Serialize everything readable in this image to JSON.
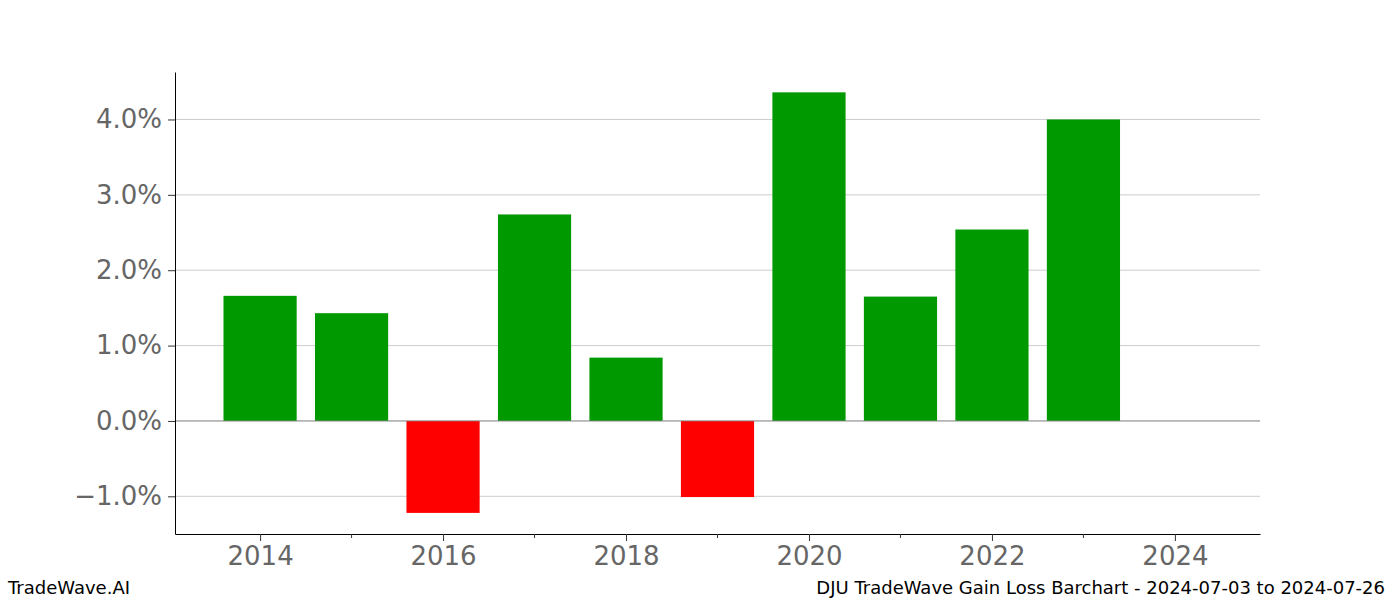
{
  "chart_data": {
    "type": "bar",
    "title": "DJU TradeWave Gain Loss Barchart - 2024-07-03 to 2024-07-26",
    "annotations": [
      "TradeWave.AI"
    ],
    "x": [
      2014,
      2015,
      2016,
      2017,
      2018,
      2019,
      2020,
      2021,
      2022,
      2023
    ],
    "values": [
      1.66,
      1.43,
      -1.22,
      2.74,
      0.84,
      -1.01,
      4.36,
      1.65,
      2.54,
      4.0
    ],
    "colors": [
      "#009900",
      "#009900",
      "#ff0000",
      "#009900",
      "#009900",
      "#ff0000",
      "#009900",
      "#009900",
      "#009900",
      "#009900"
    ],
    "xlim": [
      2013.07,
      2024.93
    ],
    "xticks": [
      2014,
      2016,
      2018,
      2020,
      2022,
      2024
    ],
    "ylim": [
      -1.5,
      4.63
    ],
    "yticks": [
      {
        "value": -1,
        "label": "−1.0%"
      },
      {
        "value": 0,
        "label": "0.0%"
      },
      {
        "value": 1,
        "label": "1.0%"
      },
      {
        "value": 2,
        "label": "2.0%"
      },
      {
        "value": 3,
        "label": "3.0%"
      },
      {
        "value": 4,
        "label": "4.0%"
      }
    ],
    "grid": true
  }
}
